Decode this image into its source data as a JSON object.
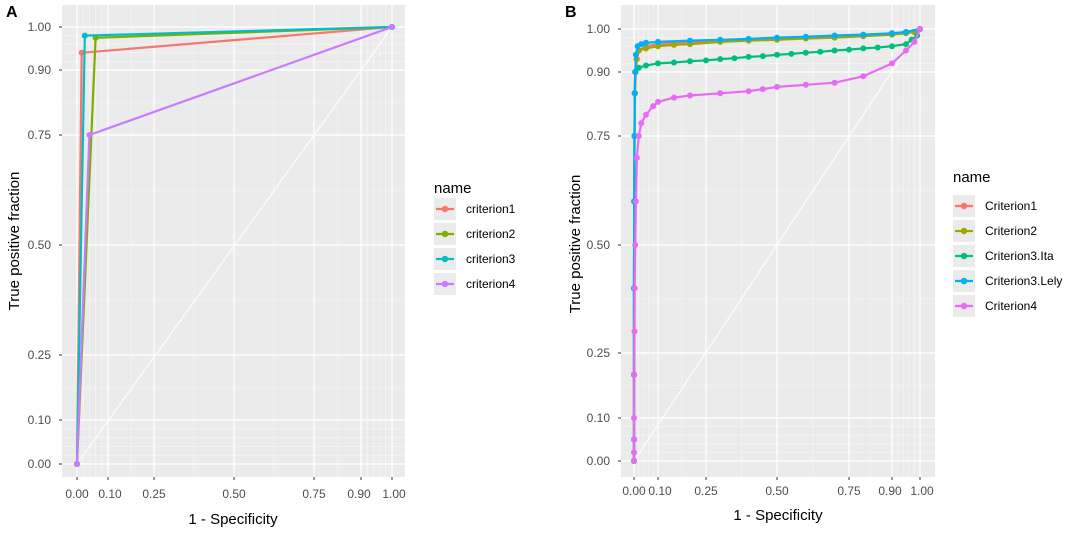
{
  "chart_data": [
    {
      "type": "line",
      "panel_label": "A",
      "xlabel": "1 - Specificity",
      "ylabel": "True positive fraction",
      "xticks": [
        0.0,
        0.1,
        0.25,
        0.5,
        0.75,
        0.9,
        1.0
      ],
      "xtick_labels": [
        "0.00",
        "0.10",
        "0.25",
        "0.50",
        "0.75",
        "0.90",
        "1.00"
      ],
      "yticks": [
        0.0,
        0.1,
        0.25,
        0.5,
        0.75,
        0.9,
        1.0
      ],
      "ytick_labels": [
        "0.00",
        "0.10",
        "0.25",
        "0.50",
        "0.75",
        "0.90",
        "1.00"
      ],
      "xlim": [
        0,
        1
      ],
      "ylim": [
        0,
        1
      ],
      "axis_scale": "probit-like (stretched near 0 and 1)",
      "diagonal_reference": true,
      "grid": true,
      "legend": {
        "title": "name",
        "position": "right"
      },
      "series": [
        {
          "name": "criterion1",
          "color": "#F8766D",
          "points": [
            [
              0,
              0
            ],
            [
              0.015,
              0.94
            ],
            [
              1,
              1
            ]
          ]
        },
        {
          "name": "criterion2",
          "color": "#7CAE00",
          "points": [
            [
              0,
              0
            ],
            [
              0.06,
              0.975
            ],
            [
              1,
              1
            ]
          ]
        },
        {
          "name": "criterion3",
          "color": "#00BFC4",
          "points": [
            [
              0,
              0
            ],
            [
              0.025,
              0.98
            ],
            [
              1,
              1
            ]
          ]
        },
        {
          "name": "criterion4",
          "color": "#C77CFF",
          "points": [
            [
              0,
              0
            ],
            [
              0.04,
              0.75
            ],
            [
              1,
              1
            ]
          ]
        }
      ]
    },
    {
      "type": "line",
      "panel_label": "B",
      "xlabel": "1 - Specificity",
      "ylabel": "True positive fraction",
      "xticks": [
        0.0,
        0.1,
        0.25,
        0.5,
        0.75,
        0.9,
        1.0
      ],
      "xtick_labels": [
        "0.00",
        "0.10",
        "0.25",
        "0.50",
        "0.75",
        "0.90",
        "1.00"
      ],
      "yticks": [
        0.0,
        0.1,
        0.25,
        0.5,
        0.75,
        0.9,
        1.0
      ],
      "ytick_labels": [
        "0.00",
        "0.10",
        "0.25",
        "0.50",
        "0.75",
        "0.90",
        "1.00"
      ],
      "xlim": [
        0,
        1
      ],
      "ylim": [
        0,
        1
      ],
      "axis_scale": "probit-like (stretched near 0 and 1)",
      "diagonal_reference": true,
      "grid": true,
      "legend": {
        "title": "name",
        "position": "right"
      },
      "series": [
        {
          "name": "Criterion1",
          "color": "#F8766D",
          "points": [
            [
              0,
              0
            ],
            [
              0,
              0.05
            ],
            [
              0,
              0.2
            ],
            [
              0,
              0.4
            ],
            [
              0.001,
              0.6
            ],
            [
              0.002,
              0.75
            ],
            [
              0.004,
              0.85
            ],
            [
              0.007,
              0.9
            ],
            [
              0.012,
              0.93
            ],
            [
              0.02,
              0.95
            ],
            [
              0.05,
              0.96
            ],
            [
              0.1,
              0.965
            ],
            [
              0.2,
              0.97
            ],
            [
              0.3,
              0.973
            ],
            [
              0.4,
              0.976
            ],
            [
              0.5,
              0.978
            ],
            [
              0.6,
              0.98
            ],
            [
              0.7,
              0.982
            ],
            [
              0.8,
              0.985
            ],
            [
              0.9,
              0.99
            ],
            [
              0.95,
              0.993
            ],
            [
              1,
              1
            ]
          ]
        },
        {
          "name": "Criterion2",
          "color": "#A3A500",
          "points": [
            [
              0,
              0
            ],
            [
              0,
              0.05
            ],
            [
              0,
              0.2
            ],
            [
              0,
              0.4
            ],
            [
              0.001,
              0.6
            ],
            [
              0.002,
              0.75
            ],
            [
              0.004,
              0.85
            ],
            [
              0.006,
              0.9
            ],
            [
              0.01,
              0.93
            ],
            [
              0.02,
              0.95
            ],
            [
              0.05,
              0.955
            ],
            [
              0.1,
              0.96
            ],
            [
              0.15,
              0.963
            ],
            [
              0.2,
              0.965
            ],
            [
              0.3,
              0.97
            ],
            [
              0.4,
              0.973
            ],
            [
              0.5,
              0.975
            ],
            [
              0.6,
              0.978
            ],
            [
              0.7,
              0.98
            ],
            [
              0.8,
              0.983
            ],
            [
              0.9,
              0.987
            ],
            [
              0.95,
              0.99
            ],
            [
              0.98,
              0.993
            ],
            [
              1,
              1
            ]
          ]
        },
        {
          "name": "Criterion3.Ita",
          "color": "#00BF7D",
          "points": [
            [
              0,
              0
            ],
            [
              0,
              0.05
            ],
            [
              0,
              0.2
            ],
            [
              0,
              0.4
            ],
            [
              0.001,
              0.6
            ],
            [
              0.002,
              0.75
            ],
            [
              0.003,
              0.85
            ],
            [
              0.005,
              0.9
            ],
            [
              0.02,
              0.91
            ],
            [
              0.05,
              0.915
            ],
            [
              0.1,
              0.92
            ],
            [
              0.15,
              0.922
            ],
            [
              0.2,
              0.925
            ],
            [
              0.25,
              0.927
            ],
            [
              0.3,
              0.93
            ],
            [
              0.35,
              0.932
            ],
            [
              0.4,
              0.935
            ],
            [
              0.45,
              0.937
            ],
            [
              0.5,
              0.94
            ],
            [
              0.55,
              0.942
            ],
            [
              0.6,
              0.945
            ],
            [
              0.65,
              0.947
            ],
            [
              0.7,
              0.95
            ],
            [
              0.75,
              0.952
            ],
            [
              0.8,
              0.955
            ],
            [
              0.85,
              0.957
            ],
            [
              0.9,
              0.96
            ],
            [
              0.95,
              0.965
            ],
            [
              0.97,
              0.975
            ],
            [
              0.99,
              0.985
            ],
            [
              1,
              1
            ]
          ]
        },
        {
          "name": "Criterion3.Lely",
          "color": "#00B0F6",
          "points": [
            [
              0,
              0
            ],
            [
              0,
              0.05
            ],
            [
              0,
              0.2
            ],
            [
              0,
              0.4
            ],
            [
              0.001,
              0.6
            ],
            [
              0.002,
              0.75
            ],
            [
              0.003,
              0.85
            ],
            [
              0.005,
              0.9
            ],
            [
              0.008,
              0.94
            ],
            [
              0.015,
              0.96
            ],
            [
              0.03,
              0.965
            ],
            [
              0.05,
              0.968
            ],
            [
              0.1,
              0.97
            ],
            [
              0.2,
              0.973
            ],
            [
              0.3,
              0.975
            ],
            [
              0.4,
              0.977
            ],
            [
              0.5,
              0.98
            ],
            [
              0.6,
              0.982
            ],
            [
              0.7,
              0.985
            ],
            [
              0.8,
              0.987
            ],
            [
              0.9,
              0.99
            ],
            [
              0.95,
              0.993
            ],
            [
              1,
              1
            ]
          ]
        },
        {
          "name": "Criterion4",
          "color": "#E76BF3",
          "points": [
            [
              0,
              0
            ],
            [
              0,
              0.02
            ],
            [
              0,
              0.05
            ],
            [
              0,
              0.1
            ],
            [
              0.001,
              0.2
            ],
            [
              0.002,
              0.3
            ],
            [
              0.003,
              0.4
            ],
            [
              0.005,
              0.5
            ],
            [
              0.008,
              0.6
            ],
            [
              0.012,
              0.7
            ],
            [
              0.02,
              0.75
            ],
            [
              0.03,
              0.78
            ],
            [
              0.05,
              0.8
            ],
            [
              0.08,
              0.82
            ],
            [
              0.1,
              0.83
            ],
            [
              0.15,
              0.84
            ],
            [
              0.2,
              0.845
            ],
            [
              0.3,
              0.85
            ],
            [
              0.4,
              0.855
            ],
            [
              0.45,
              0.86
            ],
            [
              0.5,
              0.865
            ],
            [
              0.6,
              0.87
            ],
            [
              0.7,
              0.875
            ],
            [
              0.8,
              0.89
            ],
            [
              0.9,
              0.92
            ],
            [
              0.95,
              0.95
            ],
            [
              0.98,
              0.97
            ],
            [
              1,
              1
            ]
          ]
        }
      ]
    }
  ]
}
